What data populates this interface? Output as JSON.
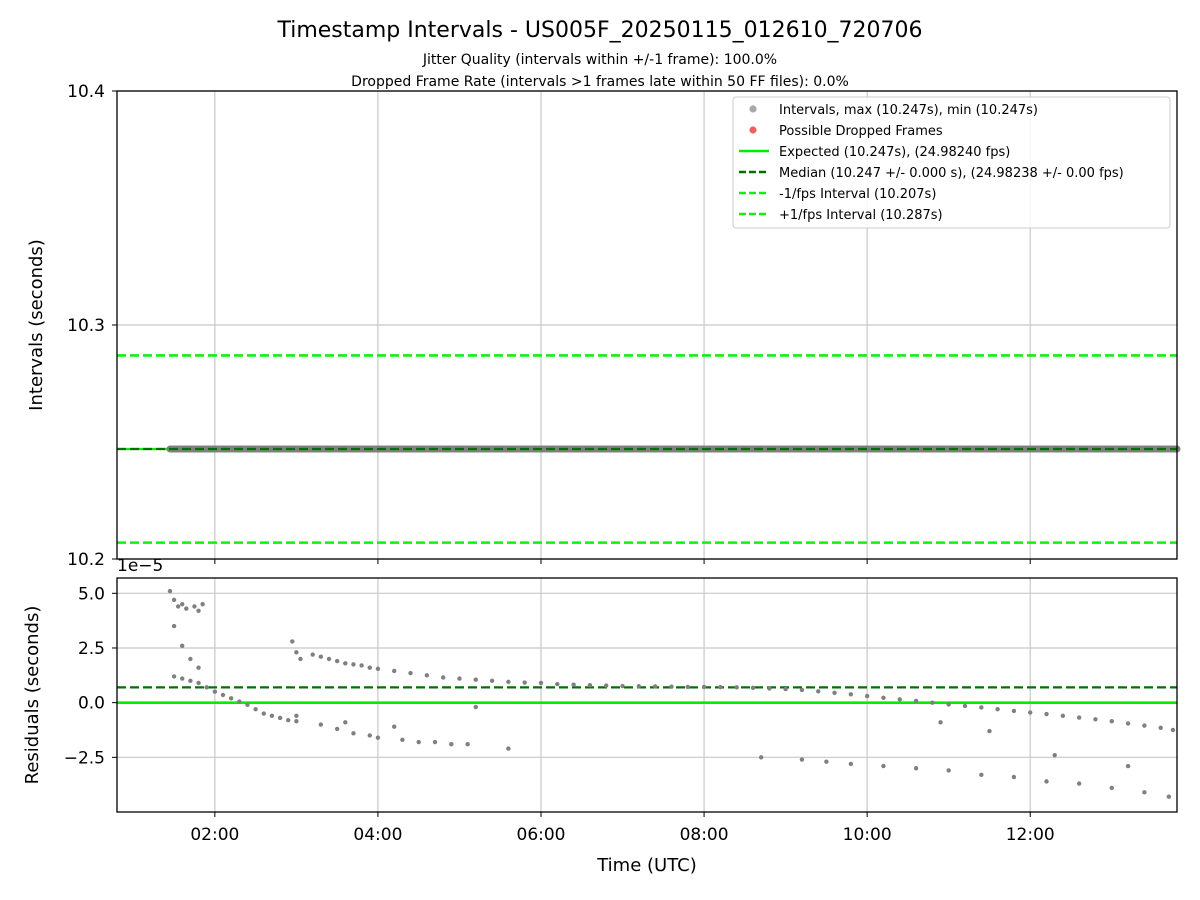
{
  "title": "Timestamp Intervals - US005F_20250115_012610_720706",
  "subtitle1": "Jitter Quality (intervals within +/-1 frame): 100.0%",
  "subtitle2": "Dropped Frame Rate (intervals >1 frames late within 50 FF files): 0.0%",
  "colors": {
    "intervals": "#808080",
    "dropped": "#f04040",
    "expected": "#00ee00",
    "median": "#007000",
    "fps_bounds": "#11ee11",
    "grid": "#c8c8c8"
  },
  "chart_data": [
    {
      "type": "scatter",
      "panel": "top",
      "ylabel": "Intervals (seconds)",
      "xlabel": "",
      "x_unit": "hours UTC (decimal)",
      "xlim": [
        0.8,
        13.8
      ],
      "ylim": [
        10.2,
        10.4
      ],
      "yticks": [
        10.2,
        10.3,
        10.4
      ],
      "ytick_labels": [
        "10.2",
        "10.3",
        "10.4"
      ],
      "grid": true,
      "legend_position": "top-right",
      "legend": [
        {
          "label": "Intervals, max (10.247s), min (10.247s)",
          "kind": "dot",
          "color": "#a8a8a8"
        },
        {
          "label": "Possible Dropped Frames",
          "kind": "dot",
          "color": "#f06060"
        },
        {
          "label": "Expected (10.247s), (24.98240 fps)",
          "kind": "solid",
          "color": "#00ee00"
        },
        {
          "label": "Median (10.247 +/- 0.000 s), (24.98238 +/- 0.00 fps)",
          "kind": "dashed",
          "color": "#007000"
        },
        {
          "label": "-1/fps Interval (10.207s)",
          "kind": "dashed",
          "color": "#11ee11"
        },
        {
          "label": "+1/fps Interval (10.287s)",
          "kind": "dashed",
          "color": "#11ee11"
        }
      ],
      "lines": {
        "expected": 10.247,
        "median": 10.247,
        "minus_fps": 10.207,
        "plus_fps": 10.287
      },
      "series": [
        {
          "name": "Intervals, max (10.247s), min (10.247s)",
          "x_start": 1.45,
          "x_end": 13.8,
          "value": 10.247
        }
      ]
    },
    {
      "type": "scatter",
      "panel": "bottom",
      "ylabel": "Residuals (seconds)",
      "xlabel": "Time (UTC)",
      "offset_label": "1e−5",
      "x_unit": "hours UTC (decimal)",
      "xlim": [
        0.8,
        13.8
      ],
      "ylim": [
        -5.0,
        5.7
      ],
      "yticks": [
        -2.5,
        0.0,
        2.5,
        5.0
      ],
      "ytick_labels": [
        "−2.5",
        "0.0",
        "2.5",
        "5.0"
      ],
      "xticks": [
        2,
        4,
        6,
        8,
        10,
        12
      ],
      "xtick_labels": [
        "02:00",
        "04:00",
        "06:00",
        "08:00",
        "10:00",
        "12:00"
      ],
      "grid": true,
      "lines": {
        "expected": 0.0,
        "median": 0.7
      },
      "series": [
        {
          "name": "main",
          "points": [
            [
              1.5,
              1.2
            ],
            [
              1.6,
              1.1
            ],
            [
              1.7,
              1.0
            ],
            [
              1.8,
              0.9
            ],
            [
              1.9,
              0.7
            ],
            [
              2.0,
              0.5
            ],
            [
              2.1,
              0.35
            ],
            [
              2.2,
              0.2
            ],
            [
              2.3,
              0.05
            ],
            [
              2.4,
              -0.1
            ],
            [
              2.5,
              -0.3
            ],
            [
              2.6,
              -0.5
            ],
            [
              2.7,
              -0.6
            ],
            [
              2.8,
              -0.7
            ],
            [
              2.9,
              -0.8
            ],
            [
              3.0,
              -0.85
            ],
            [
              3.2,
              2.2
            ],
            [
              3.3,
              2.1
            ],
            [
              3.4,
              2.0
            ],
            [
              3.5,
              1.9
            ],
            [
              3.6,
              1.8
            ],
            [
              3.7,
              1.75
            ],
            [
              3.8,
              1.7
            ],
            [
              3.9,
              1.6
            ],
            [
              4.0,
              1.55
            ],
            [
              4.2,
              1.45
            ],
            [
              4.4,
              1.35
            ],
            [
              4.6,
              1.25
            ],
            [
              4.8,
              1.15
            ],
            [
              5.0,
              1.1
            ],
            [
              5.2,
              1.05
            ],
            [
              5.4,
              1.0
            ],
            [
              5.6,
              0.95
            ],
            [
              5.8,
              0.92
            ],
            [
              6.0,
              0.9
            ],
            [
              6.2,
              0.85
            ],
            [
              6.4,
              0.82
            ],
            [
              6.6,
              0.8
            ],
            [
              6.8,
              0.78
            ],
            [
              7.0,
              0.76
            ],
            [
              7.2,
              0.75
            ],
            [
              7.4,
              0.74
            ],
            [
              7.6,
              0.73
            ],
            [
              7.8,
              0.72
            ],
            [
              8.0,
              0.72
            ],
            [
              8.2,
              0.71
            ],
            [
              8.4,
              0.7
            ],
            [
              8.6,
              0.68
            ],
            [
              8.8,
              0.65
            ],
            [
              9.0,
              0.62
            ],
            [
              9.2,
              0.58
            ],
            [
              9.4,
              0.52
            ],
            [
              9.6,
              0.45
            ],
            [
              9.8,
              0.38
            ],
            [
              10.0,
              0.3
            ],
            [
              10.2,
              0.22
            ],
            [
              10.4,
              0.15
            ],
            [
              10.6,
              0.08
            ],
            [
              10.8,
              0.0
            ],
            [
              11.0,
              -0.08
            ],
            [
              11.2,
              -0.15
            ],
            [
              11.4,
              -0.22
            ],
            [
              11.6,
              -0.3
            ],
            [
              11.8,
              -0.38
            ],
            [
              12.0,
              -0.45
            ],
            [
              12.2,
              -0.52
            ],
            [
              12.4,
              -0.6
            ],
            [
              12.6,
              -0.68
            ],
            [
              12.8,
              -0.76
            ],
            [
              13.0,
              -0.85
            ],
            [
              13.2,
              -0.95
            ],
            [
              13.4,
              -1.05
            ],
            [
              13.6,
              -1.15
            ],
            [
              13.75,
              -1.25
            ]
          ]
        },
        {
          "name": "upper",
          "points": [
            [
              1.45,
              5.1
            ],
            [
              1.5,
              4.7
            ],
            [
              1.55,
              4.4
            ],
            [
              1.6,
              4.5
            ],
            [
              1.65,
              4.3
            ],
            [
              1.75,
              4.4
            ],
            [
              1.8,
              4.2
            ],
            [
              1.85,
              4.5
            ],
            [
              1.5,
              3.5
            ],
            [
              1.6,
              2.6
            ],
            [
              1.7,
              2.0
            ],
            [
              1.8,
              1.6
            ],
            [
              2.95,
              2.8
            ],
            [
              3.0,
              2.3
            ],
            [
              3.05,
              2.0
            ]
          ]
        },
        {
          "name": "lower",
          "points": [
            [
              3.3,
              -1.0
            ],
            [
              3.5,
              -1.2
            ],
            [
              3.7,
              -1.4
            ],
            [
              3.9,
              -1.5
            ],
            [
              4.0,
              -1.6
            ],
            [
              4.3,
              -1.7
            ],
            [
              4.5,
              -1.8
            ],
            [
              4.7,
              -1.8
            ],
            [
              4.9,
              -1.9
            ],
            [
              5.1,
              -1.9
            ],
            [
              5.6,
              -2.1
            ],
            [
              8.7,
              -2.5
            ],
            [
              9.2,
              -2.6
            ],
            [
              9.5,
              -2.7
            ],
            [
              9.8,
              -2.8
            ],
            [
              10.2,
              -2.9
            ],
            [
              10.6,
              -3.0
            ],
            [
              11.0,
              -3.1
            ],
            [
              11.4,
              -3.3
            ],
            [
              11.8,
              -3.4
            ],
            [
              12.2,
              -3.6
            ],
            [
              12.6,
              -3.7
            ],
            [
              13.0,
              -3.9
            ],
            [
              13.4,
              -4.1
            ],
            [
              13.7,
              -4.3
            ],
            [
              3.0,
              -0.6
            ],
            [
              3.6,
              -0.9
            ],
            [
              4.2,
              -1.1
            ],
            [
              5.2,
              -0.2
            ],
            [
              10.9,
              -0.9
            ],
            [
              11.5,
              -1.3
            ],
            [
              12.3,
              -2.4
            ],
            [
              13.2,
              -2.9
            ]
          ]
        }
      ]
    }
  ]
}
